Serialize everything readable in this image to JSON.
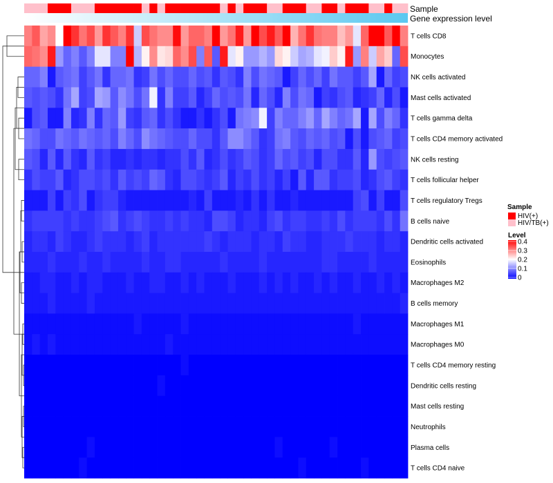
{
  "chart_data": {
    "type": "heatmap",
    "title": "",
    "n_columns": 49,
    "annotations": {
      "sample_label": "Sample",
      "expression_label": "Gene expression level",
      "sample": [
        "HIV/TB(+)",
        "HIV/TB(+)",
        "HIV/TB(+)",
        "HIV(+)",
        "HIV(+)",
        "HIV(+)",
        "HIV/TB(+)",
        "HIV/TB(+)",
        "HIV/TB(+)",
        "HIV(+)",
        "HIV(+)",
        "HIV(+)",
        "HIV(+)",
        "HIV(+)",
        "HIV(+)",
        "HIV/TB(+)",
        "HIV(+)",
        "HIV/TB(+)",
        "HIV(+)",
        "HIV(+)",
        "HIV(+)",
        "HIV(+)",
        "HIV(+)",
        "HIV(+)",
        "HIV(+)",
        "HIV/TB(+)",
        "HIV(+)",
        "HIV/TB(+)",
        "HIV(+)",
        "HIV(+)",
        "HIV(+)",
        "HIV/TB(+)",
        "HIV/TB(+)",
        "HIV(+)",
        "HIV(+)",
        "HIV(+)",
        "HIV/TB(+)",
        "HIV/TB(+)",
        "HIV(+)",
        "HIV(+)",
        "HIV/TB(+)",
        "HIV(+)",
        "HIV(+)",
        "HIV(+)",
        "HIV/TB(+)",
        "HIV/TB(+)",
        "HIV(+)",
        "HIV/TB(+)",
        "HIV/TB(+)"
      ],
      "expression_range": [
        0,
        1
      ]
    },
    "rows": [
      "T cells CD8",
      "Monocytes",
      "NK cells activated",
      "Mast cells activated",
      "T cells gamma delta",
      "T cells CD4 memory activated",
      "NK cells resting",
      "T cells follicular helper",
      "T cells regulatory  Tregs",
      "B cells naive",
      "Dendritic cells activated",
      "Eosinophils",
      "Macrophages M2",
      "B cells memory",
      "Macrophages M1",
      "Macrophages M0",
      "T cells CD4 memory resting",
      "Dendritic cells resting",
      "Mast cells resting",
      "Neutrophils",
      "Plasma cells",
      "T cells CD4 naive"
    ],
    "values": [
      [
        0.3,
        0.33,
        0.27,
        0.29,
        0.2,
        0.4,
        0.36,
        0.31,
        0.34,
        0.28,
        0.36,
        0.33,
        0.3,
        0.36,
        0.16,
        0.34,
        0.31,
        0.29,
        0.29,
        0.39,
        0.28,
        0.32,
        0.32,
        0.3,
        0.4,
        0.28,
        0.31,
        0.38,
        0.28,
        0.4,
        0.34,
        0.38,
        0.33,
        0.4,
        0.26,
        0.31,
        0.36,
        0.31,
        0.3,
        0.3,
        0.25,
        0.28,
        0.18,
        0.32,
        0.4,
        0.4,
        0.33,
        0.4,
        0.3
      ],
      [
        0.32,
        0.31,
        0.29,
        0.38,
        0.12,
        0.08,
        0.1,
        0.07,
        0.1,
        0.18,
        0.18,
        0.1,
        0.1,
        0.4,
        0.14,
        0.21,
        0.29,
        0.22,
        0.23,
        0.32,
        0.29,
        0.34,
        0.1,
        0.33,
        0.07,
        0.38,
        0.18,
        0.21,
        0.12,
        0.12,
        0.14,
        0.12,
        0.23,
        0.21,
        0.16,
        0.13,
        0.14,
        0.18,
        0.19,
        0.24,
        0.21,
        0.38,
        0.12,
        0.3,
        0.16,
        0.27,
        0.24,
        0.08,
        0.34
      ],
      [
        0.08,
        0.08,
        0.1,
        0.02,
        0.07,
        0.08,
        0.09,
        0.05,
        0.07,
        0.09,
        0.04,
        0.08,
        0.08,
        0.09,
        0.04,
        0.05,
        0.09,
        0.06,
        0.08,
        0.06,
        0.06,
        0.08,
        0.06,
        0.07,
        0.04,
        0.07,
        0.06,
        0.04,
        0.1,
        0.06,
        0.09,
        0.08,
        0.07,
        0.02,
        0.05,
        0.08,
        0.06,
        0.08,
        0.05,
        0.09,
        0.07,
        0.07,
        0.05,
        0.07,
        0.13,
        0.02,
        0.08,
        0.05,
        0.06
      ],
      [
        0.07,
        0.06,
        0.07,
        0.06,
        0.04,
        0.09,
        0.13,
        0.05,
        0.06,
        0.13,
        0.12,
        0.07,
        0.11,
        0.09,
        0.06,
        0.09,
        0.19,
        0.04,
        0.1,
        0.05,
        0.05,
        0.07,
        0.03,
        0.05,
        0.08,
        0.06,
        0.07,
        0.06,
        0.09,
        0.03,
        0.08,
        0.06,
        0.03,
        0.1,
        0.06,
        0.09,
        0.08,
        0.02,
        0.05,
        0.04,
        0.06,
        0.07,
        0.03,
        0.04,
        0.05,
        0.08,
        0.03,
        0.06,
        0.02
      ],
      [
        0.02,
        0.06,
        0.07,
        0.02,
        0.02,
        0.1,
        0.03,
        0.04,
        0.1,
        0.04,
        0.08,
        0.07,
        0.12,
        0.05,
        0.04,
        0.07,
        0.08,
        0.04,
        0.06,
        0.04,
        0.02,
        0.02,
        0.04,
        0.02,
        0.04,
        0.06,
        0.02,
        0.09,
        0.1,
        0.11,
        0.19,
        0.05,
        0.1,
        0.08,
        0.08,
        0.1,
        0.12,
        0.08,
        0.13,
        0.1,
        0.08,
        0.09,
        0.13,
        0.02,
        0.13,
        0.06,
        0.1,
        0.08,
        0.04
      ],
      [
        0.09,
        0.08,
        0.06,
        0.06,
        0.09,
        0.08,
        0.07,
        0.09,
        0.08,
        0.07,
        0.08,
        0.06,
        0.1,
        0.08,
        0.06,
        0.11,
        0.09,
        0.08,
        0.07,
        0.06,
        0.06,
        0.08,
        0.06,
        0.06,
        0.04,
        0.07,
        0.11,
        0.11,
        0.09,
        0.07,
        0.04,
        0.05,
        0.09,
        0.1,
        0.07,
        0.06,
        0.08,
        0.07,
        0.08,
        0.06,
        0.07,
        0.02,
        0.06,
        0.02,
        0.06,
        0.07,
        0.08,
        0.05,
        0.06
      ],
      [
        0.07,
        0.06,
        0.03,
        0.07,
        0.03,
        0.07,
        0.04,
        0.03,
        0.07,
        0.04,
        0.05,
        0.03,
        0.03,
        0.04,
        0.03,
        0.04,
        0.04,
        0.03,
        0.04,
        0.04,
        0.06,
        0.04,
        0.07,
        0.03,
        0.04,
        0.06,
        0.04,
        0.05,
        0.07,
        0.06,
        0.04,
        0.05,
        0.08,
        0.06,
        0.07,
        0.05,
        0.06,
        0.03,
        0.06,
        0.06,
        0.04,
        0.04,
        0.07,
        0.03,
        0.12,
        0.06,
        0.05,
        0.06,
        0.07
      ],
      [
        0.04,
        0.06,
        0.05,
        0.05,
        0.07,
        0.03,
        0.04,
        0.06,
        0.06,
        0.05,
        0.06,
        0.04,
        0.07,
        0.05,
        0.06,
        0.05,
        0.08,
        0.07,
        0.04,
        0.03,
        0.06,
        0.06,
        0.05,
        0.04,
        0.05,
        0.07,
        0.03,
        0.05,
        0.04,
        0.06,
        0.04,
        0.05,
        0.03,
        0.05,
        0.02,
        0.07,
        0.03,
        0.07,
        0.07,
        0.04,
        0.05,
        0.05,
        0.06,
        0.03,
        0.04,
        0.06,
        0.07,
        0.05,
        0.04
      ],
      [
        0.02,
        0.02,
        0.02,
        0.05,
        0.02,
        0.05,
        0.04,
        0.06,
        0.02,
        0.04,
        0.05,
        0.05,
        0.03,
        0.02,
        0.02,
        0.02,
        0.02,
        0.02,
        0.02,
        0.02,
        0.02,
        0.03,
        0.02,
        0.05,
        0.02,
        0.02,
        0.02,
        0.03,
        0.02,
        0.04,
        0.02,
        0.04,
        0.02,
        0.02,
        0.03,
        0.02,
        0.02,
        0.02,
        0.02,
        0.02,
        0.02,
        0.02,
        0.05,
        0.06,
        0.02,
        0.05,
        0.02,
        0.02,
        0.06
      ],
      [
        0.04,
        0.05,
        0.05,
        0.05,
        0.05,
        0.04,
        0.05,
        0.04,
        0.04,
        0.05,
        0.06,
        0.07,
        0.04,
        0.05,
        0.06,
        0.05,
        0.04,
        0.04,
        0.05,
        0.04,
        0.05,
        0.04,
        0.04,
        0.03,
        0.06,
        0.06,
        0.05,
        0.03,
        0.04,
        0.04,
        0.03,
        0.05,
        0.06,
        0.04,
        0.05,
        0.05,
        0.04,
        0.04,
        0.05,
        0.04,
        0.06,
        0.04,
        0.05,
        0.05,
        0.05,
        0.04,
        0.06,
        0.04,
        0.09
      ],
      [
        0.03,
        0.04,
        0.04,
        0.03,
        0.05,
        0.04,
        0.03,
        0.03,
        0.04,
        0.05,
        0.04,
        0.04,
        0.04,
        0.03,
        0.04,
        0.05,
        0.03,
        0.04,
        0.04,
        0.04,
        0.04,
        0.04,
        0.04,
        0.05,
        0.04,
        0.03,
        0.04,
        0.04,
        0.04,
        0.03,
        0.04,
        0.04,
        0.03,
        0.05,
        0.04,
        0.04,
        0.03,
        0.03,
        0.04,
        0.04,
        0.04,
        0.05,
        0.04,
        0.04,
        0.04,
        0.03,
        0.04,
        0.04,
        0.03
      ],
      [
        0.03,
        0.03,
        0.03,
        0.04,
        0.03,
        0.03,
        0.03,
        0.04,
        0.03,
        0.03,
        0.04,
        0.03,
        0.03,
        0.03,
        0.03,
        0.04,
        0.03,
        0.03,
        0.04,
        0.04,
        0.03,
        0.03,
        0.03,
        0.03,
        0.03,
        0.04,
        0.03,
        0.03,
        0.03,
        0.03,
        0.04,
        0.03,
        0.03,
        0.03,
        0.03,
        0.03,
        0.03,
        0.03,
        0.04,
        0.04,
        0.03,
        0.03,
        0.03,
        0.03,
        0.04,
        0.03,
        0.03,
        0.03,
        0.03
      ],
      [
        0.02,
        0.02,
        0.03,
        0.03,
        0.02,
        0.02,
        0.03,
        0.02,
        0.03,
        0.03,
        0.02,
        0.02,
        0.02,
        0.03,
        0.02,
        0.02,
        0.03,
        0.03,
        0.02,
        0.02,
        0.03,
        0.02,
        0.03,
        0.02,
        0.02,
        0.02,
        0.03,
        0.02,
        0.02,
        0.02,
        0.03,
        0.02,
        0.03,
        0.02,
        0.03,
        0.02,
        0.02,
        0.03,
        0.02,
        0.03,
        0.02,
        0.02,
        0.03,
        0.02,
        0.02,
        0.03,
        0.02,
        0.03,
        0.02
      ],
      [
        0.02,
        0.02,
        0.02,
        0.03,
        0.02,
        0.02,
        0.02,
        0.02,
        0.03,
        0.02,
        0.02,
        0.02,
        0.02,
        0.02,
        0.02,
        0.02,
        0.02,
        0.02,
        0.02,
        0.02,
        0.02,
        0.02,
        0.02,
        0.02,
        0.02,
        0.02,
        0.02,
        0.02,
        0.02,
        0.02,
        0.02,
        0.02,
        0.02,
        0.02,
        0.02,
        0.02,
        0.02,
        0.02,
        0.02,
        0.02,
        0.02,
        0.02,
        0.02,
        0.02,
        0.02,
        0.02,
        0.02,
        0.02,
        0.03
      ],
      [
        0.01,
        0.01,
        0.01,
        0.01,
        0.01,
        0.01,
        0.01,
        0.01,
        0.01,
        0.01,
        0.01,
        0.01,
        0.01,
        0.01,
        0.02,
        0.01,
        0.01,
        0.01,
        0.01,
        0.01,
        0.02,
        0.01,
        0.01,
        0.01,
        0.01,
        0.01,
        0.01,
        0.01,
        0.01,
        0.01,
        0.01,
        0.01,
        0.01,
        0.01,
        0.01,
        0.01,
        0.01,
        0.01,
        0.01,
        0.01,
        0.01,
        0.01,
        0.02,
        0.01,
        0.01,
        0.01,
        0.01,
        0.01,
        0.01
      ],
      [
        0.01,
        0.02,
        0.01,
        0.02,
        0.01,
        0.01,
        0.01,
        0.01,
        0.01,
        0.01,
        0.01,
        0.01,
        0.01,
        0.01,
        0.01,
        0.01,
        0.01,
        0.01,
        0.02,
        0.01,
        0.01,
        0.01,
        0.01,
        0.01,
        0.01,
        0.01,
        0.01,
        0.01,
        0.01,
        0.01,
        0.01,
        0.01,
        0.01,
        0.01,
        0.01,
        0.01,
        0.01,
        0.01,
        0.01,
        0.01,
        0.01,
        0.01,
        0.01,
        0.01,
        0.01,
        0.01,
        0.01,
        0.01,
        0.01
      ],
      [
        0.0,
        0.0,
        0.0,
        0.0,
        0.0,
        0.0,
        0.0,
        0.0,
        0.0,
        0.0,
        0.0,
        0.0,
        0.0,
        0.0,
        0.0,
        0.0,
        0.0,
        0.0,
        0.0,
        0.0,
        0.01,
        0.0,
        0.0,
        0.0,
        0.0,
        0.0,
        0.0,
        0.0,
        0.0,
        0.0,
        0.0,
        0.0,
        0.0,
        0.0,
        0.0,
        0.0,
        0.0,
        0.0,
        0.0,
        0.0,
        0.0,
        0.0,
        0.0,
        0.0,
        0.0,
        0.0,
        0.0,
        0.0,
        0.0
      ],
      [
        0.0,
        0.0,
        0.0,
        0.0,
        0.0,
        0.0,
        0.0,
        0.0,
        0.0,
        0.0,
        0.0,
        0.0,
        0.0,
        0.0,
        0.0,
        0.0,
        0.0,
        0.01,
        0.0,
        0.0,
        0.0,
        0.0,
        0.0,
        0.0,
        0.0,
        0.0,
        0.0,
        0.0,
        0.0,
        0.0,
        0.0,
        0.0,
        0.0,
        0.0,
        0.0,
        0.0,
        0.0,
        0.0,
        0.0,
        0.0,
        0.0,
        0.0,
        0.0,
        0.0,
        0.0,
        0.0,
        0.0,
        0.0,
        0.0
      ],
      [
        0.0,
        0.0,
        0.0,
        0.0,
        0.0,
        0.0,
        0.0,
        0.0,
        0.0,
        0.0,
        0.0,
        0.0,
        0.0,
        0.0,
        0.0,
        0.0,
        0.0,
        0.0,
        0.0,
        0.0,
        0.0,
        0.0,
        0.0,
        0.0,
        0.0,
        0.0,
        0.0,
        0.0,
        0.0,
        0.0,
        0.0,
        0.0,
        0.0,
        0.0,
        0.0,
        0.0,
        0.0,
        0.0,
        0.0,
        0.0,
        0.0,
        0.0,
        0.0,
        0.0,
        0.0,
        0.0,
        0.0,
        0.0,
        0.0
      ],
      [
        0.0,
        0.0,
        0.0,
        0.0,
        0.0,
        0.0,
        0.0,
        0.0,
        0.0,
        0.0,
        0.0,
        0.0,
        0.0,
        0.0,
        0.0,
        0.0,
        0.0,
        0.0,
        0.0,
        0.0,
        0.0,
        0.0,
        0.0,
        0.0,
        0.0,
        0.0,
        0.0,
        0.0,
        0.0,
        0.0,
        0.0,
        0.0,
        0.0,
        0.0,
        0.0,
        0.0,
        0.0,
        0.0,
        0.0,
        0.0,
        0.0,
        0.0,
        0.0,
        0.0,
        0.0,
        0.0,
        0.0,
        0.0,
        0.0
      ],
      [
        0.0,
        0.0,
        0.0,
        0.0,
        0.0,
        0.0,
        0.0,
        0.0,
        0.01,
        0.0,
        0.0,
        0.0,
        0.0,
        0.0,
        0.0,
        0.0,
        0.0,
        0.0,
        0.0,
        0.0,
        0.0,
        0.0,
        0.0,
        0.0,
        0.0,
        0.0,
        0.0,
        0.0,
        0.0,
        0.0,
        0.0,
        0.0,
        0.01,
        0.0,
        0.0,
        0.0,
        0.0,
        0.0,
        0.0,
        0.01,
        0.0,
        0.0,
        0.0,
        0.0,
        0.0,
        0.0,
        0.0,
        0.0,
        0.0
      ],
      [
        0.0,
        0.0,
        0.0,
        0.0,
        0.0,
        0.0,
        0.0,
        0.01,
        0.0,
        0.0,
        0.0,
        0.0,
        0.0,
        0.0,
        0.0,
        0.0,
        0.0,
        0.0,
        0.0,
        0.0,
        0.0,
        0.0,
        0.0,
        0.0,
        0.0,
        0.0,
        0.0,
        0.0,
        0.0,
        0.0,
        0.0,
        0.0,
        0.0,
        0.0,
        0.0,
        0.01,
        0.0,
        0.0,
        0.0,
        0.0,
        0.0,
        0.0,
        0.0,
        0.01,
        0.0,
        0.0,
        0.0,
        0.0,
        0.0
      ]
    ],
    "legend": {
      "sample_title": "Sample",
      "sample_items": [
        {
          "label": "HIV(+)",
          "color": "#ff0000"
        },
        {
          "label": "HIV/TB(+)",
          "color": "#ffc0cb"
        }
      ],
      "level_title": "Level",
      "level_ticks": [
        0.4,
        0.3,
        0.2,
        0.1,
        0
      ],
      "color_min": "#0000ff",
      "color_mid": "#ffffff",
      "color_max": "#ff0000",
      "value_min": 0,
      "value_mid": 0.2,
      "value_max": 0.4
    },
    "expression_color_low": "#ffffff",
    "expression_color_high": "#5bc8f0"
  }
}
